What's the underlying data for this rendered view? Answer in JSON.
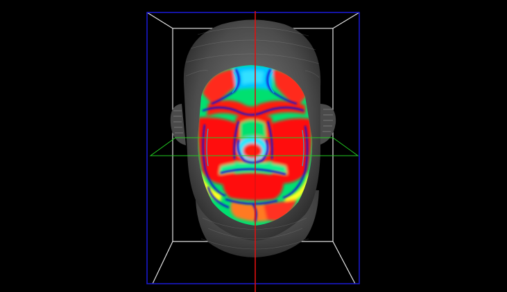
{
  "scene": {
    "background_color": "#000000",
    "bounding_box_front_color": "#1a1acc",
    "bounding_box_back_color": "#e6e6e6",
    "vertical_axis_color": "#e01010",
    "horizontal_plane_color": "#22cc22",
    "head_color": "#5a5a5a",
    "heatmap_colors": [
      "#0000c8",
      "#00c8ff",
      "#00ff80",
      "#ffff00",
      "#ff0000"
    ]
  }
}
